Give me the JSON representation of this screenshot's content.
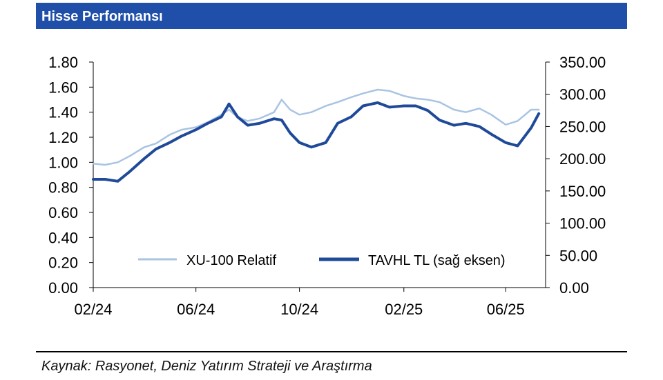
{
  "header": {
    "title": "Hisse Performansı"
  },
  "footer": {
    "source": "Kaynak: Rasyonet, Deniz Yatırım Strateji ve Araştırma"
  },
  "chart_data": {
    "type": "line",
    "title": "",
    "x_ticks": [
      "02/24",
      "06/24",
      "10/24",
      "02/25",
      "06/25"
    ],
    "x_tick_dates": [
      "2024-02-01",
      "2024-06-01",
      "2024-10-01",
      "2025-02-01",
      "2025-06-01"
    ],
    "y_left": {
      "ylim": [
        0,
        1.8
      ],
      "ticks": [
        "0.00",
        "0.20",
        "0.40",
        "0.60",
        "0.80",
        "1.00",
        "1.20",
        "1.40",
        "1.60",
        "1.80"
      ]
    },
    "y_right": {
      "ylim": [
        0,
        350
      ],
      "ticks": [
        "0.00",
        "50.00",
        "100.00",
        "150.00",
        "200.00",
        "250.00",
        "300.00",
        "350.00"
      ]
    },
    "legend": {
      "placement": "bottom-center"
    },
    "grid": false,
    "series": [
      {
        "name": "XU-100 Relatif",
        "axis": "left",
        "color": "#a9c4e3",
        "x": [
          "2024-02-01",
          "2024-02-15",
          "2024-03-01",
          "2024-03-15",
          "2024-04-01",
          "2024-04-15",
          "2024-05-01",
          "2024-05-15",
          "2024-06-01",
          "2024-06-15",
          "2024-07-01",
          "2024-07-10",
          "2024-07-20",
          "2024-08-01",
          "2024-08-15",
          "2024-09-01",
          "2024-09-10",
          "2024-09-20",
          "2024-10-01",
          "2024-10-15",
          "2024-11-01",
          "2024-11-15",
          "2024-12-01",
          "2024-12-15",
          "2025-01-01",
          "2025-01-15",
          "2025-02-01",
          "2025-02-15",
          "2025-03-01",
          "2025-03-15",
          "2025-04-01",
          "2025-04-15",
          "2025-05-01",
          "2025-05-15",
          "2025-06-01",
          "2025-06-15",
          "2025-07-01",
          "2025-07-10"
        ],
        "values": [
          0.99,
          0.98,
          1.0,
          1.05,
          1.12,
          1.15,
          1.22,
          1.26,
          1.28,
          1.32,
          1.38,
          1.42,
          1.36,
          1.33,
          1.35,
          1.4,
          1.5,
          1.42,
          1.38,
          1.4,
          1.45,
          1.48,
          1.52,
          1.55,
          1.58,
          1.57,
          1.53,
          1.51,
          1.5,
          1.48,
          1.42,
          1.4,
          1.43,
          1.38,
          1.3,
          1.33,
          1.42,
          1.42
        ]
      },
      {
        "name": "TAVHL TL (sağ eksen)",
        "axis": "right",
        "color": "#1f4a99",
        "x": [
          "2024-02-01",
          "2024-02-15",
          "2024-03-01",
          "2024-03-15",
          "2024-04-01",
          "2024-04-15",
          "2024-05-01",
          "2024-05-15",
          "2024-06-01",
          "2024-06-15",
          "2024-07-01",
          "2024-07-10",
          "2024-07-20",
          "2024-08-01",
          "2024-08-15",
          "2024-09-01",
          "2024-09-10",
          "2024-09-20",
          "2024-10-01",
          "2024-10-15",
          "2024-11-01",
          "2024-11-15",
          "2024-12-01",
          "2024-12-15",
          "2025-01-01",
          "2025-01-15",
          "2025-02-01",
          "2025-02-15",
          "2025-03-01",
          "2025-03-15",
          "2025-04-01",
          "2025-04-15",
          "2025-05-01",
          "2025-05-15",
          "2025-06-01",
          "2025-06-15",
          "2025-07-01",
          "2025-07-10"
        ],
        "values": [
          168,
          168,
          165,
          180,
          200,
          215,
          225,
          235,
          245,
          255,
          265,
          285,
          265,
          252,
          255,
          262,
          260,
          240,
          225,
          218,
          225,
          255,
          265,
          282,
          287,
          280,
          282,
          282,
          275,
          260,
          252,
          255,
          250,
          238,
          225,
          220,
          248,
          270
        ]
      }
    ]
  }
}
